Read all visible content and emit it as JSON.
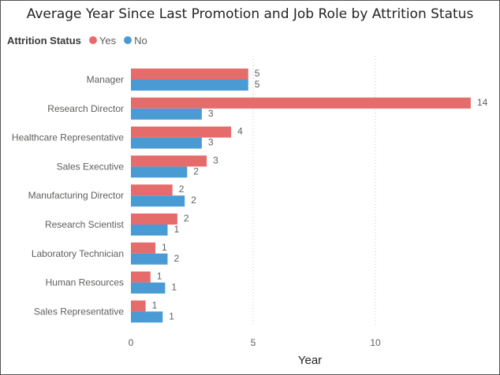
{
  "chart_data": {
    "type": "bar",
    "orientation": "horizontal",
    "title": "Average Year Since Last Promotion and Job Role by Attrition Status",
    "xlabel": "Year",
    "ylabel": "",
    "xlim": [
      0,
      14
    ],
    "xticks": [
      0,
      5,
      10
    ],
    "grid": "vertical-dotted",
    "legend": {
      "title": "Attrition Status",
      "position": "top-left"
    },
    "categories": [
      "Manager",
      "Research Director",
      "Healthcare Representative",
      "Sales Executive",
      "Manufacturing Director",
      "Research Scientist",
      "Laboratory Technician",
      "Human Resources",
      "Sales Representative"
    ],
    "series": [
      {
        "name": "Yes",
        "color": "#E66C6C",
        "values": [
          4.8,
          13.9,
          4.1,
          3.1,
          1.7,
          1.9,
          1.0,
          0.8,
          0.6
        ],
        "labels": [
          "5",
          "14",
          "4",
          "3",
          "2",
          "2",
          "1",
          "1",
          "1"
        ]
      },
      {
        "name": "No",
        "color": "#4A9BD4",
        "values": [
          4.8,
          2.9,
          2.9,
          2.3,
          2.2,
          1.5,
          1.5,
          1.4,
          1.3
        ],
        "labels": [
          "5",
          "3",
          "3",
          "2",
          "2",
          "1",
          "2",
          "1",
          "1"
        ]
      }
    ]
  }
}
